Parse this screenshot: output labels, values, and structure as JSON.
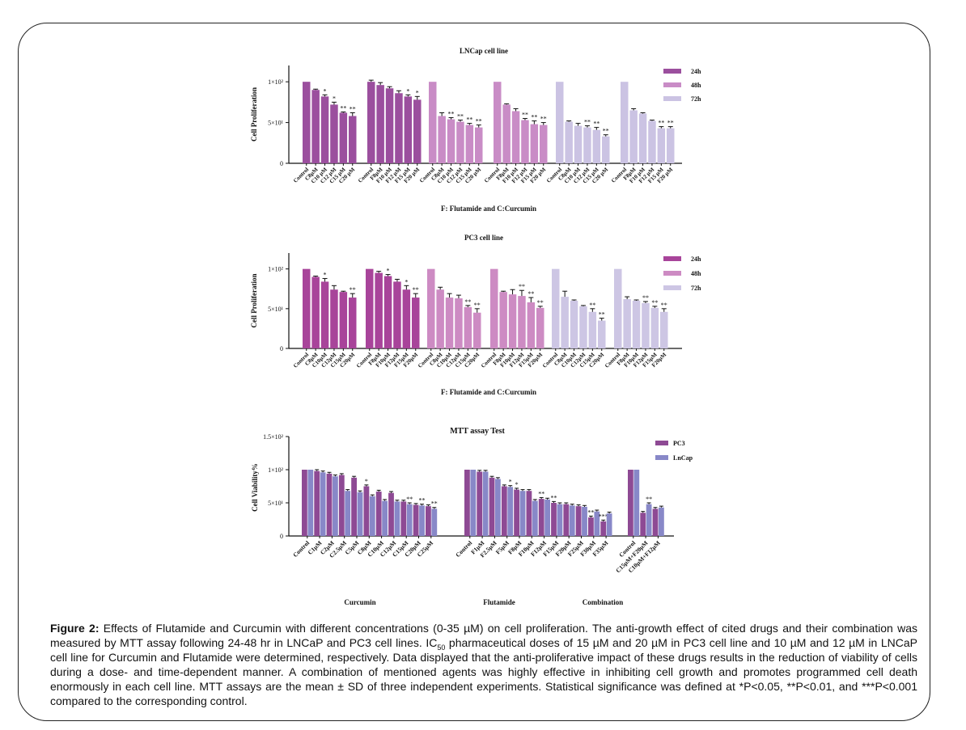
{
  "colors": {
    "c24": "#9b4f9e",
    "c48": "#c98cc6",
    "c72": "#cbc3e3",
    "pc3_c24": "#a8449a",
    "pc3_c48": "#cd8bc3",
    "pc3_c72": "#cdc6e4",
    "mtt_pc3": "#8e4a94",
    "mtt_lncap": "#8888c8"
  },
  "chart_data": [
    {
      "type": "bar",
      "title": "LNCap cell line",
      "ylabel": "Cell Proliferation",
      "xlabel": "F: Flutamide and C:Curcumin",
      "yticks": [
        "0",
        "5×10¹",
        "1×10²"
      ],
      "ylim": [
        0,
        120
      ],
      "legend": [
        {
          "name": "24h",
          "color_key": "c24"
        },
        {
          "name": "48h",
          "color_key": "c48"
        },
        {
          "name": "72h",
          "color_key": "c72"
        }
      ],
      "legend_position": "top-right",
      "groups": [
        {
          "series": "24h",
          "color_key": "c24",
          "categories": [
            "Control",
            "C8µM",
            "C10 µM",
            "C12 µM",
            "C15 µM",
            "C20 µM"
          ],
          "values": [
            100,
            90,
            82,
            72,
            62,
            58
          ],
          "errors": [
            0,
            1,
            2,
            3,
            1,
            4
          ],
          "sig": [
            "",
            "",
            "*",
            "*",
            "**",
            "**"
          ]
        },
        {
          "series": "24h",
          "color_key": "c24",
          "categories": [
            "Control",
            "F8µM",
            "F10 µM",
            "F12 µM",
            "F15 µM",
            "F20 µM"
          ],
          "values": [
            100,
            96,
            92,
            86,
            82,
            78
          ],
          "errors": [
            2,
            3,
            2,
            3,
            2,
            4
          ],
          "sig": [
            "",
            "",
            "",
            "",
            "*",
            "*"
          ]
        },
        {
          "series": "48h",
          "color_key": "c48",
          "categories": [
            "Control",
            "C8µM",
            "C10 µM",
            "C12 µM",
            "C15 µM",
            "C20 µM"
          ],
          "values": [
            100,
            58,
            54,
            51,
            47,
            44
          ],
          "errors": [
            0,
            4,
            2,
            2,
            2,
            3
          ],
          "sig": [
            "",
            "",
            "**",
            "**",
            "**",
            "**"
          ]
        },
        {
          "series": "48h",
          "color_key": "c48",
          "categories": [
            "Control",
            "F8µM",
            "F10 µM",
            "F12 µM",
            "F15 µM",
            "F20 µM"
          ],
          "values": [
            100,
            72,
            64,
            53,
            48,
            47
          ],
          "errors": [
            0,
            1,
            3,
            2,
            4,
            3
          ],
          "sig": [
            "",
            "",
            "",
            "**",
            "**",
            "**"
          ]
        },
        {
          "series": "72h",
          "color_key": "c72",
          "categories": [
            "Control",
            "C8µM",
            "C10 µM",
            "C12 µM",
            "C15 µM",
            "C20 µM"
          ],
          "values": [
            100,
            51,
            46,
            44,
            41,
            33
          ],
          "errors": [
            0,
            1,
            3,
            2,
            3,
            2
          ],
          "sig": [
            "",
            "",
            "",
            "**",
            "**",
            "**"
          ]
        },
        {
          "series": "72h",
          "color_key": "c72",
          "categories": [
            "Control",
            "F8µM",
            "F10 µM",
            "F12 µM",
            "F15 µM",
            "F20 µM"
          ],
          "values": [
            100,
            65,
            61,
            52,
            43,
            43
          ],
          "errors": [
            0,
            2,
            1,
            1,
            2,
            2
          ],
          "sig": [
            "",
            "",
            "",
            "",
            "**",
            "**"
          ]
        }
      ]
    },
    {
      "type": "bar",
      "title": "PC3 cell line",
      "ylabel": "Cell Proliferation",
      "xlabel": "F: Flutamide and C:Curcumin",
      "yticks": [
        "0",
        "5×10¹",
        "1×10²"
      ],
      "ylim": [
        0,
        120
      ],
      "legend": [
        {
          "name": "24h",
          "color_key": "pc3_c24"
        },
        {
          "name": "48h",
          "color_key": "pc3_c48"
        },
        {
          "name": "72h",
          "color_key": "pc3_c72"
        }
      ],
      "legend_position": "top-right",
      "groups": [
        {
          "series": "24h",
          "color_key": "pc3_c24",
          "categories": [
            "Control",
            "C8µM",
            "C10µM",
            "C12µM",
            "C15µM",
            "C20µM"
          ],
          "values": [
            100,
            90,
            84,
            74,
            71,
            64
          ],
          "errors": [
            0,
            1,
            4,
            5,
            1,
            5
          ],
          "sig": [
            "",
            "",
            "*",
            "",
            "",
            "**"
          ]
        },
        {
          "series": "24h",
          "color_key": "pc3_c24",
          "categories": [
            "Control",
            "F8µM",
            "F10µM",
            "F12µM",
            "F15µM",
            "F20µM"
          ],
          "values": [
            100,
            95,
            91,
            84,
            74,
            64
          ],
          "errors": [
            0,
            2,
            2,
            3,
            5,
            5
          ],
          "sig": [
            "",
            "",
            "*",
            "",
            "*",
            "**"
          ]
        },
        {
          "series": "48h",
          "color_key": "pc3_c48",
          "categories": [
            "Control",
            "C8µM",
            "C10µM",
            "C12µM",
            "C15µM",
            "C20µM"
          ],
          "values": [
            100,
            74,
            64,
            63,
            52,
            45
          ],
          "errors": [
            0,
            3,
            5,
            4,
            2,
            5
          ],
          "sig": [
            "",
            "",
            "",
            "",
            "**",
            "**"
          ]
        },
        {
          "series": "48h",
          "color_key": "pc3_c48",
          "categories": [
            "Control",
            "F8µM",
            "F10µM",
            "F12µM",
            "F15µM",
            "F20µM"
          ],
          "values": [
            100,
            71,
            68,
            66,
            58,
            51
          ],
          "errors": [
            0,
            1,
            6,
            7,
            6,
            2
          ],
          "sig": [
            "",
            "",
            "",
            "**",
            "**",
            "**"
          ]
        },
        {
          "series": "72h",
          "color_key": "pc3_c72",
          "categories": [
            "Control",
            "C8µM",
            "C10µM",
            "C12µM",
            "C15µM",
            "C20µM"
          ],
          "values": [
            100,
            65,
            60,
            53,
            46,
            35
          ],
          "errors": [
            0,
            7,
            1,
            1,
            4,
            3
          ],
          "sig": [
            "",
            "",
            "",
            "",
            "**",
            "**"
          ]
        },
        {
          "series": "72h",
          "color_key": "pc3_c72",
          "categories": [
            "Control",
            "F8µM",
            "F10µM",
            "F12µM",
            "F15µM",
            "F20µM"
          ],
          "values": [
            100,
            62,
            60,
            57,
            51,
            46
          ],
          "errors": [
            0,
            3,
            1,
            2,
            2,
            4
          ],
          "sig": [
            "",
            "",
            "",
            "**",
            "**",
            "**"
          ]
        }
      ]
    },
    {
      "type": "bar",
      "title": "MTT assay Test",
      "ylabel": "Cell Viability%",
      "yticks": [
        "0",
        "5×10¹",
        "1×10²",
        "1.5×10²"
      ],
      "ylim": [
        0,
        150
      ],
      "legend": [
        {
          "name": "PC3",
          "color_key": "mtt_pc3"
        },
        {
          "name": "LnCap",
          "color_key": "mtt_lncap"
        }
      ],
      "legend_position": "top-right",
      "sections": [
        {
          "label": "Curcumin",
          "categories": [
            "Control",
            "C1µM",
            "C2µM",
            "C2.5µM",
            "C5µM",
            "C8µM",
            "C10µM",
            "C12µM",
            "C15µM",
            "C20µM",
            "C25µM"
          ],
          "pc3": [
            100,
            98,
            94,
            92,
            88,
            75,
            67,
            65,
            52,
            47,
            45
          ],
          "lncap": [
            100,
            96,
            90,
            68,
            66,
            60,
            53,
            52,
            48,
            46,
            41
          ],
          "sig_pc3": [
            "",
            "",
            "",
            "",
            "",
            "*",
            "",
            "",
            "",
            "",
            ""
          ],
          "sig_lncap": [
            "",
            "",
            "",
            "",
            "",
            "",
            "",
            "",
            "**",
            "**",
            "**"
          ]
        },
        {
          "label": "Flutamide",
          "categories": [
            "Control",
            "F1µM",
            "F2.5µM",
            "F5µM",
            "F8µM",
            "F10µM",
            "F12µM",
            "F15µM",
            "F20µM",
            "F25µM",
            "F30µM",
            "F35µM"
          ],
          "pc3": [
            100,
            97,
            88,
            75,
            70,
            68,
            56,
            50,
            48,
            45,
            28,
            22
          ],
          "lncap": [
            100,
            97,
            86,
            74,
            68,
            53,
            55,
            48,
            46,
            44,
            37,
            34
          ],
          "sig_pc3": [
            "",
            "",
            "",
            "",
            "*",
            "",
            "**",
            "**",
            "",
            "",
            "**",
            "***"
          ],
          "sig_lncap": [
            "",
            "",
            "",
            "*",
            "",
            "",
            "",
            "",
            "",
            "",
            "",
            ""
          ]
        },
        {
          "label": "Combination",
          "categories": [
            "Control",
            "C15µM+F20µM",
            "C10µM+F12µM"
          ],
          "pc3": [
            100,
            35,
            41
          ],
          "lncap": [
            100,
            48,
            43
          ],
          "sig_pc3": [
            "",
            "",
            ""
          ],
          "sig_lncap": [
            "",
            "**",
            ""
          ]
        }
      ]
    }
  ],
  "caption": {
    "label": "Figure 2:",
    "text_before_ic": " Effects of Flutamide and Curcumin with different concentrations (0-35 µM) on cell proliferation. The anti-growth effect of cited drugs and their combination was measured by MTT assay following 24-48 hr in LNCaP and PC3 cell lines. IC",
    "ic_sub": "50",
    "text_after_ic": " pharmaceutical doses of 15 µM and 20 µM in PC3 cell line and 10 µM and 12 µM in LNCaP cell line for Curcumin and Flutamide were determined, respectively. Data displayed that the anti-proliferative impact of these drugs results in the reduction of viability of cells during a dose- and time-dependent manner. A combination of mentioned agents was highly effective in inhibiting cell growth and promotes   programmed cell death enormously in each cell line. MTT assays are the mean ± SD of three independent experiments. Statistical significance was defined at *P<0.05, **P<0.01, and ***P<0.001 compared to the corresponding control."
  }
}
